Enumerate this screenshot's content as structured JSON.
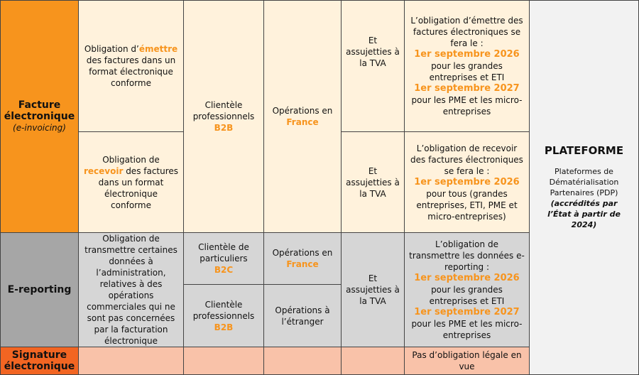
{
  "facture": {
    "title": "Facture électronique",
    "subtitle": "(e-invoicing)"
  },
  "emettre": {
    "before": "Obligation d’",
    "accent": "émettre",
    "after": "des factures dans un format électronique conforme"
  },
  "recevoir": {
    "before": "Obligation de ",
    "accent": "recevoir",
    "after": "des factures dans un format électronique conforme"
  },
  "b2b_invoicing": {
    "text": "Clientèle professionnels",
    "accent": "B2B"
  },
  "france_invoicing": {
    "text": "Opérations en",
    "accent": "France"
  },
  "tva": [
    "Et assujetties à la TVA",
    "Et assujetties à la TVA",
    "Et assujetties à la TVA"
  ],
  "emettre_timeline": {
    "intro": "L’obligation d’émettre des factures électroniques se fera le :",
    "steps": [
      {
        "date": "1er septembre 2026",
        "text": "pour les grandes entreprises et ETI"
      },
      {
        "date": "1er septembre 2027",
        "text": "pour les PME et les micro-entreprises"
      }
    ]
  },
  "recevoir_timeline": {
    "intro": "L’obligation de recevoir des factures électroniques se fera le :",
    "steps": [
      {
        "date": "1er septembre 2026",
        "text": "pour tous (grandes entreprises, ETI, PME et micro-entreprises)"
      }
    ]
  },
  "ereporting": {
    "title": "E-reporting",
    "description": "Obligation de transmettre certaines données à l’administration, relatives à des opérations commerciales qui ne sont pas concernées par la facturation électronique"
  },
  "b2c_reporting": {
    "text": "Clientèle de particuliers",
    "accent": "B2C"
  },
  "france_reporting": {
    "text": "Opérations en",
    "accent": "France"
  },
  "b2b_reporting": {
    "text": "Clientèle professionnels",
    "accent": "B2B"
  },
  "etranger": "Opérations à l’étranger",
  "reporting_timeline": {
    "intro": "L’obligation de transmettre les données e-reporting :",
    "steps": [
      {
        "date": "1er septembre 2026",
        "text": "pour les grandes entreprises et ETI"
      },
      {
        "date": "1er septembre 2027",
        "text": "pour les PME et les micro-entreprises"
      }
    ]
  },
  "signature": {
    "title": "Signature électronique",
    "note": "Pas d’obligation légale en vue"
  },
  "plateforme": {
    "title": "PLATEFORME",
    "description": "Plateformes de Dématérialisation Partenaires (PDP)",
    "note": "(accrédités par l’État à partir de 2024)"
  }
}
